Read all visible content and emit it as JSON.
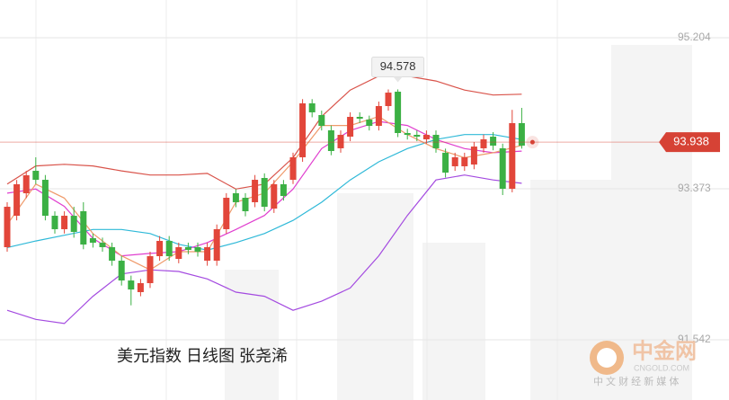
{
  "chart_data": {
    "type": "candlestick",
    "title": "美元指数 日线图 张尧浠",
    "ylim": [
      90.812,
      95.662
    ],
    "yticks": [
      91.542,
      93.373,
      95.204
    ],
    "grid": true,
    "up_color": "#e2463a",
    "down_color": "#3bb044",
    "open": [
      92.665,
      93.046,
      93.319,
      93.591,
      93.482,
      93.046,
      92.883,
      93.046,
      93.101,
      92.774,
      92.719,
      92.665,
      92.501,
      92.261,
      92.12,
      92.229,
      92.556,
      92.741,
      92.523,
      92.665,
      92.665,
      92.501,
      92.501,
      92.883,
      93.319,
      93.264,
      93.21,
      93.504,
      93.133,
      93.428,
      93.482,
      93.755,
      94.409,
      94.267,
      94.082,
      93.864,
      94.005,
      94.245,
      94.212,
      94.136,
      94.376,
      94.55,
      94.049,
      94.027,
      93.973,
      94.027,
      93.81,
      93.646,
      93.646,
      93.667,
      93.864,
      94.005,
      93.864,
      93.373,
      94.169
    ],
    "high": [
      93.21,
      93.48,
      93.59,
      93.755,
      93.54,
      93.1,
      93.1,
      93.155,
      93.21,
      92.83,
      92.78,
      92.72,
      92.56,
      92.32,
      92.28,
      92.61,
      92.8,
      92.8,
      92.72,
      92.72,
      92.72,
      92.72,
      92.94,
      93.32,
      93.37,
      93.32,
      93.54,
      93.56,
      93.48,
      93.48,
      93.81,
      94.46,
      94.46,
      94.32,
      94.14,
      94.08,
      94.3,
      94.3,
      94.26,
      94.43,
      94.578,
      94.578,
      94.1,
      94.08,
      94.08,
      94.08,
      93.86,
      93.81,
      93.81,
      93.94,
      94.03,
      94.06,
      93.92,
      94.33,
      94.354
    ],
    "low": [
      92.61,
      92.99,
      93.26,
      93.43,
      92.99,
      92.83,
      92.83,
      92.78,
      92.64,
      92.66,
      92.61,
      92.44,
      92.2,
      91.96,
      92.07,
      92.17,
      92.5,
      92.5,
      92.47,
      92.58,
      92.55,
      92.44,
      92.44,
      92.83,
      93.15,
      93.04,
      93.15,
      93.1,
      93.08,
      93.23,
      93.43,
      93.7,
      94.24,
      94.08,
      93.78,
      93.81,
      93.95,
      94.17,
      94.08,
      94.08,
      94.32,
      94.0,
      93.97,
      93.95,
      93.92,
      93.81,
      93.51,
      93.59,
      93.59,
      93.61,
      93.81,
      93.84,
      93.297,
      93.33,
      93.86
    ],
    "close": [
      93.155,
      93.428,
      93.537,
      93.482,
      93.046,
      92.883,
      93.046,
      92.85,
      92.697,
      92.719,
      92.665,
      92.501,
      92.261,
      92.152,
      92.229,
      92.556,
      92.741,
      92.556,
      92.665,
      92.632,
      92.61,
      92.665,
      92.883,
      93.264,
      93.21,
      93.101,
      93.482,
      93.155,
      93.428,
      93.286,
      93.755,
      94.409,
      94.3,
      94.136,
      93.831,
      94.027,
      94.245,
      94.223,
      94.136,
      94.376,
      94.539,
      94.049,
      94.027,
      94.005,
      94.027,
      93.864,
      93.569,
      93.755,
      93.755,
      93.885,
      93.973,
      93.896,
      93.373,
      94.169,
      93.896
    ],
    "high_label_index": 41,
    "line_x": [
      0,
      3,
      6,
      9,
      12,
      15,
      18,
      21,
      24,
      27,
      30,
      33,
      36,
      39,
      42,
      45,
      48,
      51,
      54
    ],
    "series": [
      {
        "color": "#d9534a",
        "values": [
          93.43,
          93.65,
          93.67,
          93.65,
          93.59,
          93.54,
          93.54,
          93.56,
          93.37,
          93.43,
          93.75,
          94.25,
          94.57,
          94.74,
          94.74,
          94.68,
          94.57,
          94.51,
          94.52
        ]
      },
      {
        "color": "#a44be0",
        "values": [
          91.9,
          91.79,
          91.74,
          92.07,
          92.34,
          92.39,
          92.37,
          92.28,
          92.12,
          92.07,
          91.9,
          92.01,
          92.17,
          92.56,
          93.05,
          93.48,
          93.54,
          93.48,
          93.44
        ]
      },
      {
        "color": "#2fb9d8",
        "values": [
          92.66,
          92.74,
          92.81,
          92.88,
          92.88,
          92.83,
          92.7,
          92.63,
          92.72,
          92.83,
          92.99,
          93.21,
          93.48,
          93.7,
          93.86,
          93.97,
          94.03,
          94.03,
          93.97
        ]
      },
      {
        "color": "#e03fcf",
        "values": [
          93.32,
          93.37,
          93.16,
          92.77,
          92.56,
          92.59,
          92.61,
          92.72,
          92.88,
          93.05,
          93.37,
          93.86,
          94.08,
          94.19,
          94.14,
          93.97,
          93.86,
          93.81,
          93.83
        ]
      },
      {
        "color": "#ef9a6a",
        "values": [
          92.94,
          93.43,
          93.26,
          92.83,
          92.56,
          92.39,
          92.61,
          92.61,
          93.21,
          93.32,
          93.7,
          94.14,
          94.14,
          94.25,
          94.03,
          93.86,
          93.75,
          93.81,
          93.9
        ]
      }
    ],
    "last_price": 93.938,
    "last_price_color": "#d64235"
  },
  "watermark": {
    "brand": "中金网",
    "site": "CNGOLD.COM",
    "slogan": "中 文 财 经 新 媒 体"
  }
}
